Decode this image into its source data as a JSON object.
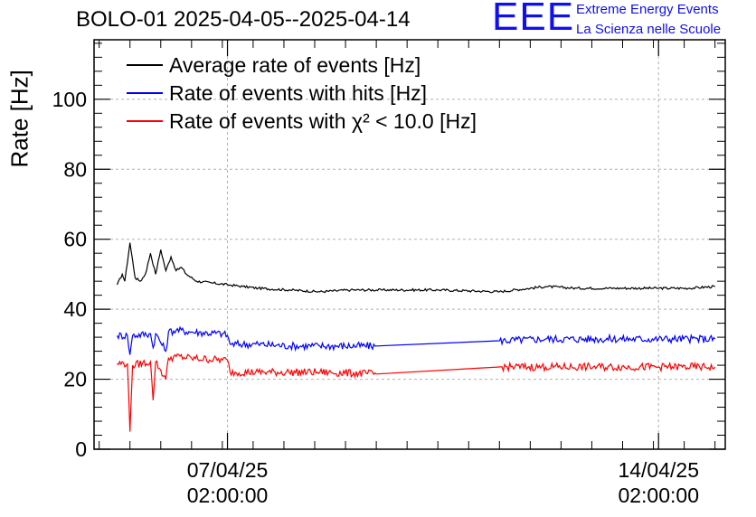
{
  "header": {
    "title": "BOLO-01 2025-04-05--2025-04-14",
    "logo_text": "EEE",
    "logo_line1": "Extreme Energy Events",
    "logo_line2": "La Scienza nelle Scuole"
  },
  "colors": {
    "average": "#000000",
    "hits": "#0000ff",
    "chi2": "#ff0000",
    "logo": "#1010ee",
    "grid": "#b0b0b0"
  },
  "chart_data": {
    "type": "line",
    "title": "BOLO-01 2025-04-05--2025-04-14",
    "xlabel": "",
    "ylabel": "Rate [Hz]",
    "x_axis": "time",
    "xlim": [
      "2025-04-04 22:00",
      "2025-04-15 04:00"
    ],
    "ylim": [
      0,
      117
    ],
    "y_ticks": [
      0,
      20,
      40,
      60,
      80,
      100
    ],
    "x_ticks": [
      {
        "t": "2025-04-07 02:00",
        "label_line1": "07/04/25",
        "label_line2": "02:00:00"
      },
      {
        "t": "2025-04-14 02:00",
        "label_line1": "14/04/25",
        "label_line2": "02:00:00"
      }
    ],
    "grid": true,
    "legend_position": "top-left",
    "series": [
      {
        "name": "Average rate of events [Hz]",
        "color": "#000000",
        "points": [
          [
            "2025-04-05 07:00",
            47
          ],
          [
            "2025-04-05 09:00",
            50
          ],
          [
            "2025-04-05 10:00",
            48
          ],
          [
            "2025-04-05 12:00",
            59
          ],
          [
            "2025-04-05 14:00",
            49
          ],
          [
            "2025-04-05 16:00",
            48
          ],
          [
            "2025-04-05 18:00",
            50
          ],
          [
            "2025-04-05 20:00",
            56
          ],
          [
            "2025-04-05 22:00",
            50
          ],
          [
            "2025-04-06 00:00",
            57
          ],
          [
            "2025-04-06 02:00",
            51
          ],
          [
            "2025-04-06 04:00",
            55
          ],
          [
            "2025-04-06 06:00",
            51
          ],
          [
            "2025-04-06 08:00",
            52
          ],
          [
            "2025-04-06 10:00",
            50
          ],
          [
            "2025-04-06 14:00",
            48
          ],
          [
            "2025-04-06 20:00",
            47.5
          ],
          [
            "2025-04-07 02:00",
            47
          ],
          [
            "2025-04-07 08:00",
            46.5
          ],
          [
            "2025-04-07 14:00",
            46
          ],
          [
            "2025-04-08 02:00",
            45.5
          ],
          [
            "2025-04-08 14:00",
            45
          ],
          [
            "2025-04-09 02:00",
            45.5
          ],
          [
            "2025-04-09 14:00",
            45.5
          ],
          [
            "2025-04-10 12:00",
            45.5
          ],
          [
            "2025-04-11 12:00",
            45
          ],
          [
            "2025-04-12 06:00",
            46.5
          ],
          [
            "2025-04-12 18:00",
            46
          ],
          [
            "2025-04-13 12:00",
            46
          ],
          [
            "2025-04-14 02:00",
            46
          ],
          [
            "2025-04-14 14:00",
            46
          ],
          [
            "2025-04-15 00:00",
            46.5
          ]
        ]
      },
      {
        "name": "Rate of events with hits [Hz]",
        "color": "#0000ff",
        "points": [
          [
            "2025-04-05 07:00",
            32.5
          ],
          [
            "2025-04-05 11:00",
            32.5
          ],
          [
            "2025-04-05 12:00",
            27
          ],
          [
            "2025-04-05 13:00",
            32.5
          ],
          [
            "2025-04-05 20:00",
            33
          ],
          [
            "2025-04-05 21:00",
            29
          ],
          [
            "2025-04-05 22:00",
            33
          ],
          [
            "2025-04-06 02:00",
            28
          ],
          [
            "2025-04-06 03:00",
            33.5
          ],
          [
            "2025-04-06 06:00",
            34
          ],
          [
            "2025-04-06 12:00",
            33.5
          ],
          [
            "2025-04-07 00:00",
            33
          ],
          [
            "2025-04-07 02:00",
            32.5
          ],
          [
            "2025-04-07 03:00",
            30
          ],
          [
            "2025-04-07 14:00",
            30
          ],
          [
            "2025-04-08 02:00",
            29.5
          ],
          [
            "2025-04-08 14:00",
            29.5
          ],
          [
            "2025-04-09 12:00",
            29.5
          ],
          [
            "2025-04-11 12:00",
            31
          ],
          [
            "2025-04-12 06:00",
            31.5
          ],
          [
            "2025-04-13 02:00",
            31.5
          ],
          [
            "2025-04-14 02:00",
            31.5
          ],
          [
            "2025-04-15 00:00",
            31.5
          ]
        ]
      },
      {
        "name": "Rate of events with χ² < 10.0 [Hz]",
        "color": "#ff0000",
        "points": [
          [
            "2025-04-05 07:00",
            24.5
          ],
          [
            "2025-04-05 11:00",
            24.5
          ],
          [
            "2025-04-05 12:00",
            5
          ],
          [
            "2025-04-05 13:00",
            24
          ],
          [
            "2025-04-05 20:00",
            25
          ],
          [
            "2025-04-05 21:00",
            14
          ],
          [
            "2025-04-05 22:00",
            25
          ],
          [
            "2025-04-06 02:00",
            20
          ],
          [
            "2025-04-06 03:00",
            26
          ],
          [
            "2025-04-06 06:00",
            26.5
          ],
          [
            "2025-04-06 12:00",
            26
          ],
          [
            "2025-04-07 00:00",
            25.5
          ],
          [
            "2025-04-07 02:00",
            25.5
          ],
          [
            "2025-04-07 03:00",
            22
          ],
          [
            "2025-04-07 14:00",
            22
          ],
          [
            "2025-04-08 02:00",
            22
          ],
          [
            "2025-04-08 14:00",
            22
          ],
          [
            "2025-04-09 12:00",
            21.5
          ],
          [
            "2025-04-11 12:00",
            23.5
          ],
          [
            "2025-04-12 06:00",
            23.5
          ],
          [
            "2025-04-13 02:00",
            23.5
          ],
          [
            "2025-04-14 02:00",
            23.5
          ],
          [
            "2025-04-15 00:00",
            23.5
          ]
        ]
      }
    ]
  }
}
